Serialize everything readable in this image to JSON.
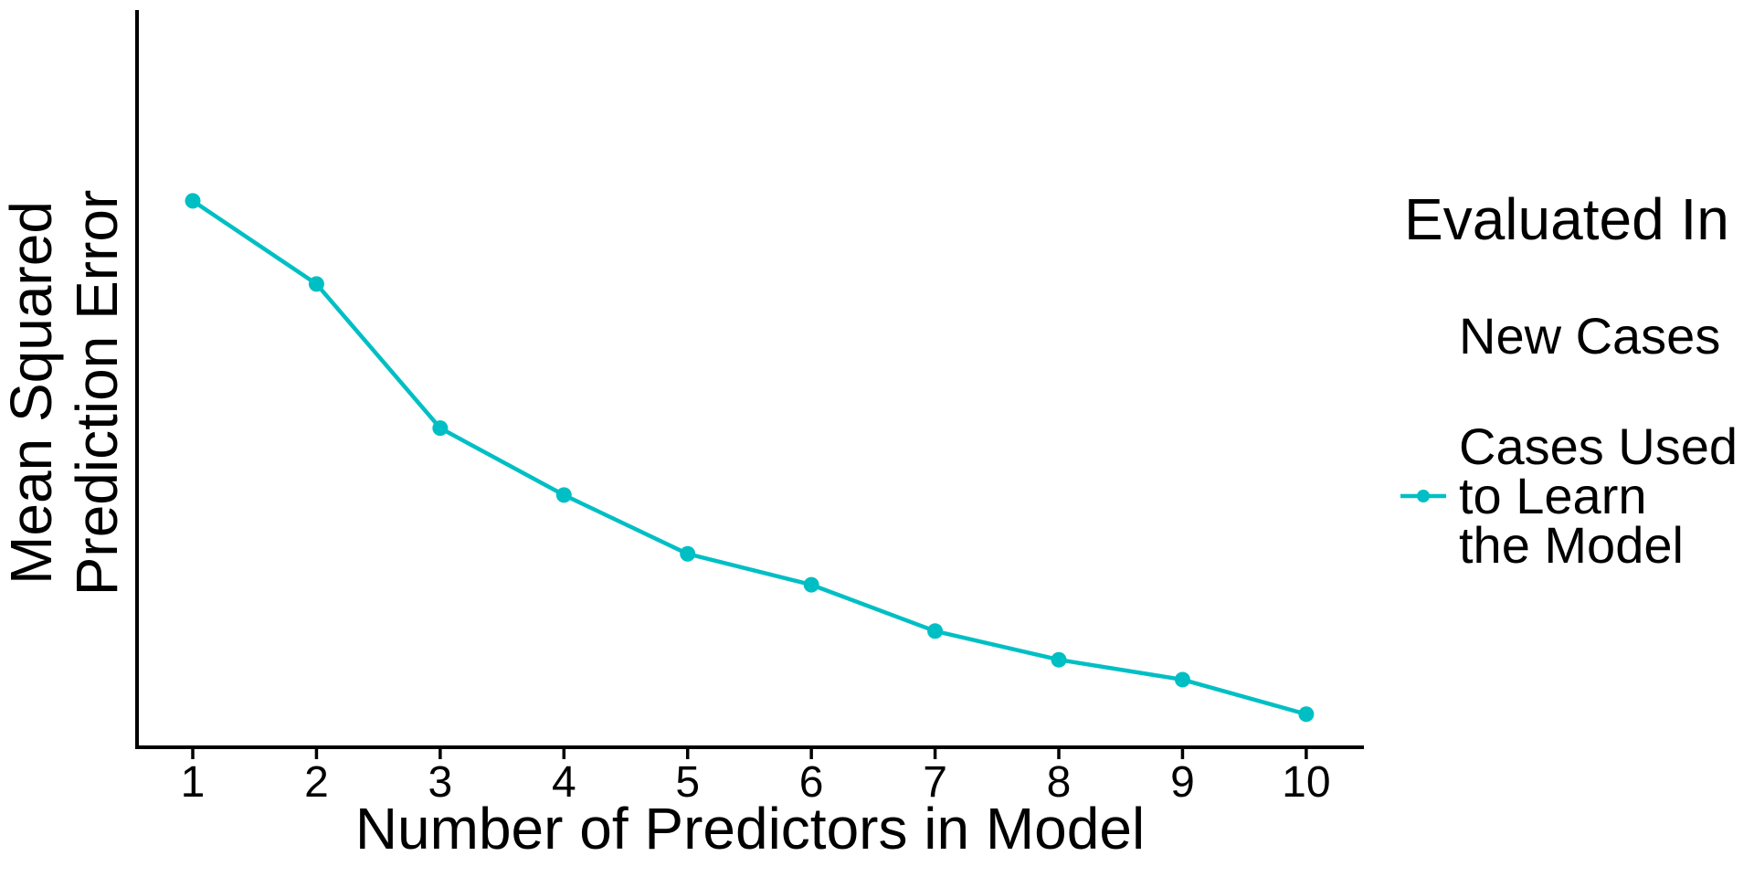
{
  "chart_data": {
    "type": "line",
    "title": "",
    "xlabel": "Number of Predictors in Model",
    "ylabel": "Mean Squared Prediction Error",
    "ylabel_lines": [
      "Mean Squared",
      "Prediction Error"
    ],
    "x": [
      1,
      2,
      3,
      4,
      5,
      6,
      7,
      8,
      9,
      10
    ],
    "x_tick_labels": [
      "1",
      "2",
      "3",
      "4",
      "5",
      "6",
      "7",
      "8",
      "9",
      "10"
    ],
    "y_tick_labels": [],
    "ylim": [
      0,
      1
    ],
    "grid": false,
    "legend_title": "Evaluated In",
    "legend_position": "right",
    "series": [
      {
        "name": "Cases Used to Learn the Model",
        "color": "#00BFC4",
        "marker": "circle",
        "visible": true,
        "values": [
          0.743,
          0.63,
          0.434,
          0.343,
          0.263,
          0.221,
          0.158,
          0.119,
          0.092,
          0.045
        ]
      },
      {
        "name": "New Cases",
        "color": "",
        "marker": "none",
        "visible": false,
        "values": []
      }
    ]
  },
  "legend": {
    "title": "Evaluated In",
    "items": [
      {
        "lines": [
          "New Cases"
        ],
        "has_key": false
      },
      {
        "lines": [
          "Cases Used",
          "to Learn",
          "the Model"
        ],
        "has_key": true,
        "key_color": "#00BFC4"
      }
    ]
  },
  "colors": {
    "series_teal": "#00BFC4",
    "axis": "#000000",
    "background": "#FFFFFF"
  }
}
